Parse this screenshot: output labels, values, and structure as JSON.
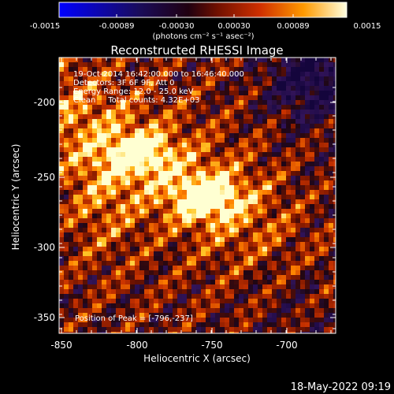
{
  "colorbar": {
    "ticks": [
      "-0.0015",
      "-0.00089",
      "-0.00030",
      "0.00030",
      "0.00089",
      "0.0015"
    ],
    "units": "(photons cm⁻² s⁻¹ asec⁻²)",
    "range": [
      -0.0015,
      0.0015
    ]
  },
  "title": "Reconstructed RHESSI Image",
  "info": {
    "time": "19-Oct-2014 16:42:00.000 to 16:46:40.000",
    "detectors": "Detectors: 3F 6F 9F, Att 0",
    "energy": "Energy Range: 12.0 - 25.0 keV",
    "clean": "Clean     Total counts: 4.32E+03"
  },
  "peak": "Position of Peak = [-796,-237]",
  "axes": {
    "xlabel": "Heliocentric X (arcsec)",
    "ylabel": "Heliocentric Y (arcsec)",
    "xticks": [
      "-850",
      "-800",
      "-750",
      "-700"
    ],
    "yticks": [
      "-200",
      "-250",
      "-300",
      "-350"
    ],
    "xlim": [
      -858,
      -673
    ],
    "ylim": [
      -363,
      -178
    ]
  },
  "footer_date": "18-May-2022 09:19",
  "colors": {
    "background": "#000000",
    "text": "#ffffff"
  }
}
